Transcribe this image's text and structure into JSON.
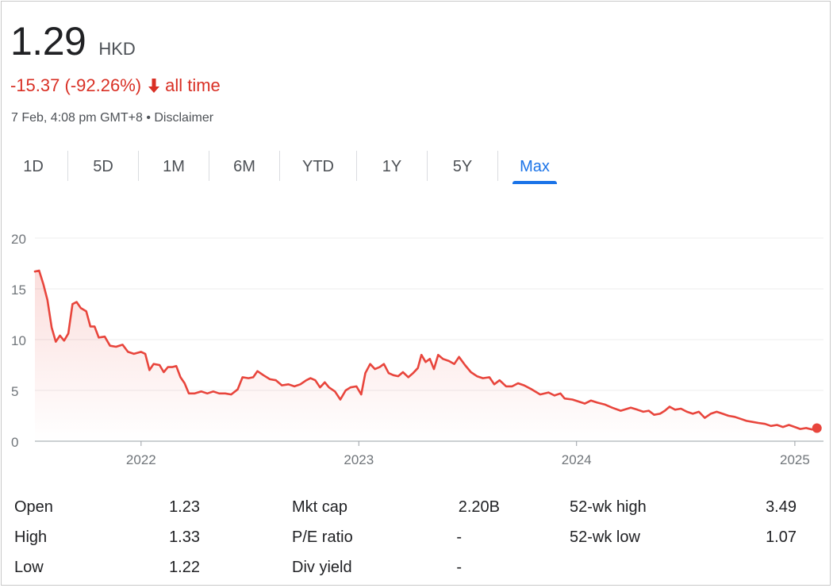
{
  "header": {
    "price": "1.29",
    "currency": "HKD",
    "change": "-15.37 (-92.26%)",
    "period": "all time",
    "timestamp": "7 Feb, 4:08 pm GMT+8",
    "separator": "•",
    "disclaimer": "Disclaimer"
  },
  "colors": {
    "accent": "#1a73e8",
    "negative": "#d93025",
    "line": "#e8453c"
  },
  "tabs": [
    {
      "label": "1D",
      "active": false
    },
    {
      "label": "5D",
      "active": false
    },
    {
      "label": "1M",
      "active": false
    },
    {
      "label": "6M",
      "active": false
    },
    {
      "label": "YTD",
      "active": false
    },
    {
      "label": "1Y",
      "active": false
    },
    {
      "label": "5Y",
      "active": false
    },
    {
      "label": "Max",
      "active": true
    }
  ],
  "chart_data": {
    "type": "area",
    "title": "",
    "xlabel": "",
    "ylabel": "",
    "ylim": [
      0,
      20
    ],
    "yticks": [
      0,
      5,
      10,
      15,
      20
    ],
    "xlim": [
      "2021-07-07",
      "2025-02-18"
    ],
    "xticks": [
      {
        "label": "2022",
        "date": "2022-01-01"
      },
      {
        "label": "2023",
        "date": "2023-01-01"
      },
      {
        "label": "2024",
        "date": "2024-01-01"
      },
      {
        "label": "2025",
        "date": "2025-01-01"
      }
    ],
    "grid": true,
    "series": [
      {
        "name": "",
        "points": [
          [
            "2021-07-07",
            16.7
          ],
          [
            "2021-07-14",
            16.8
          ],
          [
            "2021-07-21",
            15.5
          ],
          [
            "2021-07-28",
            13.9
          ],
          [
            "2021-08-04",
            11.2
          ],
          [
            "2021-08-11",
            9.8
          ],
          [
            "2021-08-18",
            10.4
          ],
          [
            "2021-08-25",
            9.9
          ],
          [
            "2021-09-01",
            10.6
          ],
          [
            "2021-09-08",
            13.5
          ],
          [
            "2021-09-15",
            13.7
          ],
          [
            "2021-09-22",
            13.1
          ],
          [
            "2021-10-01",
            12.8
          ],
          [
            "2021-10-08",
            11.3
          ],
          [
            "2021-10-15",
            11.3
          ],
          [
            "2021-10-22",
            10.2
          ],
          [
            "2021-11-01",
            10.3
          ],
          [
            "2021-11-10",
            9.4
          ],
          [
            "2021-11-20",
            9.3
          ],
          [
            "2021-12-01",
            9.5
          ],
          [
            "2021-12-10",
            8.8
          ],
          [
            "2021-12-20",
            8.6
          ],
          [
            "2022-01-01",
            8.8
          ],
          [
            "2022-01-08",
            8.6
          ],
          [
            "2022-01-15",
            7.0
          ],
          [
            "2022-01-22",
            7.6
          ],
          [
            "2022-02-01",
            7.5
          ],
          [
            "2022-02-08",
            6.8
          ],
          [
            "2022-02-15",
            7.3
          ],
          [
            "2022-02-22",
            7.3
          ],
          [
            "2022-03-01",
            7.4
          ],
          [
            "2022-03-08",
            6.3
          ],
          [
            "2022-03-15",
            5.7
          ],
          [
            "2022-03-22",
            4.7
          ],
          [
            "2022-04-01",
            4.7
          ],
          [
            "2022-04-12",
            4.9
          ],
          [
            "2022-04-22",
            4.7
          ],
          [
            "2022-05-02",
            4.9
          ],
          [
            "2022-05-12",
            4.7
          ],
          [
            "2022-05-22",
            4.7
          ],
          [
            "2022-06-01",
            4.6
          ],
          [
            "2022-06-12",
            5.1
          ],
          [
            "2022-06-20",
            6.3
          ],
          [
            "2022-06-30",
            6.2
          ],
          [
            "2022-07-08",
            6.3
          ],
          [
            "2022-07-15",
            6.9
          ],
          [
            "2022-07-25",
            6.5
          ],
          [
            "2022-08-05",
            6.1
          ],
          [
            "2022-08-15",
            6.0
          ],
          [
            "2022-08-25",
            5.5
          ],
          [
            "2022-09-05",
            5.6
          ],
          [
            "2022-09-15",
            5.4
          ],
          [
            "2022-09-25",
            5.6
          ],
          [
            "2022-10-05",
            6.0
          ],
          [
            "2022-10-12",
            6.2
          ],
          [
            "2022-10-20",
            6.0
          ],
          [
            "2022-10-28",
            5.3
          ],
          [
            "2022-11-05",
            5.8
          ],
          [
            "2022-11-12",
            5.3
          ],
          [
            "2022-11-22",
            4.9
          ],
          [
            "2022-12-01",
            4.1
          ],
          [
            "2022-12-10",
            5.0
          ],
          [
            "2022-12-18",
            5.3
          ],
          [
            "2022-12-28",
            5.4
          ],
          [
            "2023-01-05",
            4.6
          ],
          [
            "2023-01-12",
            6.7
          ],
          [
            "2023-01-20",
            7.6
          ],
          [
            "2023-01-28",
            7.1
          ],
          [
            "2023-02-05",
            7.3
          ],
          [
            "2023-02-12",
            7.6
          ],
          [
            "2023-02-20",
            6.7
          ],
          [
            "2023-02-28",
            6.5
          ],
          [
            "2023-03-08",
            6.4
          ],
          [
            "2023-03-16",
            6.8
          ],
          [
            "2023-03-25",
            6.3
          ],
          [
            "2023-04-02",
            6.7
          ],
          [
            "2023-04-10",
            7.2
          ],
          [
            "2023-04-16",
            8.5
          ],
          [
            "2023-04-23",
            7.8
          ],
          [
            "2023-04-30",
            8.1
          ],
          [
            "2023-05-07",
            7.1
          ],
          [
            "2023-05-14",
            8.5
          ],
          [
            "2023-05-22",
            8.1
          ],
          [
            "2023-06-01",
            7.9
          ],
          [
            "2023-06-10",
            7.6
          ],
          [
            "2023-06-18",
            8.3
          ],
          [
            "2023-06-28",
            7.5
          ],
          [
            "2023-07-08",
            6.8
          ],
          [
            "2023-07-18",
            6.4
          ],
          [
            "2023-07-28",
            6.2
          ],
          [
            "2023-08-08",
            6.3
          ],
          [
            "2023-08-16",
            5.6
          ],
          [
            "2023-08-25",
            6.0
          ],
          [
            "2023-09-05",
            5.4
          ],
          [
            "2023-09-15",
            5.4
          ],
          [
            "2023-09-25",
            5.7
          ],
          [
            "2023-10-05",
            5.5
          ],
          [
            "2023-10-18",
            5.1
          ],
          [
            "2023-11-01",
            4.6
          ],
          [
            "2023-11-15",
            4.8
          ],
          [
            "2023-11-25",
            4.5
          ],
          [
            "2023-12-05",
            4.7
          ],
          [
            "2023-12-12",
            4.2
          ],
          [
            "2023-12-25",
            4.1
          ],
          [
            "2024-01-05",
            3.9
          ],
          [
            "2024-01-15",
            3.7
          ],
          [
            "2024-01-25",
            4.0
          ],
          [
            "2024-02-05",
            3.8
          ],
          [
            "2024-02-18",
            3.6
          ],
          [
            "2024-03-01",
            3.3
          ],
          [
            "2024-03-15",
            3.0
          ],
          [
            "2024-04-01",
            3.3
          ],
          [
            "2024-04-12",
            3.1
          ],
          [
            "2024-04-22",
            2.9
          ],
          [
            "2024-05-01",
            3.0
          ],
          [
            "2024-05-10",
            2.6
          ],
          [
            "2024-05-20",
            2.7
          ],
          [
            "2024-05-28",
            3.0
          ],
          [
            "2024-06-05",
            3.4
          ],
          [
            "2024-06-14",
            3.1
          ],
          [
            "2024-06-24",
            3.2
          ],
          [
            "2024-07-04",
            2.9
          ],
          [
            "2024-07-14",
            2.7
          ],
          [
            "2024-07-24",
            2.9
          ],
          [
            "2024-08-03",
            2.3
          ],
          [
            "2024-08-13",
            2.7
          ],
          [
            "2024-08-23",
            2.9
          ],
          [
            "2024-09-02",
            2.7
          ],
          [
            "2024-09-12",
            2.5
          ],
          [
            "2024-09-22",
            2.4
          ],
          [
            "2024-10-02",
            2.2
          ],
          [
            "2024-10-12",
            2.0
          ],
          [
            "2024-10-22",
            1.9
          ],
          [
            "2024-11-01",
            1.8
          ],
          [
            "2024-11-12",
            1.7
          ],
          [
            "2024-11-22",
            1.5
          ],
          [
            "2024-12-02",
            1.6
          ],
          [
            "2024-12-12",
            1.4
          ],
          [
            "2024-12-22",
            1.6
          ],
          [
            "2025-01-01",
            1.4
          ],
          [
            "2025-01-10",
            1.2
          ],
          [
            "2025-01-20",
            1.3
          ],
          [
            "2025-01-30",
            1.15
          ],
          [
            "2025-02-07",
            1.29
          ]
        ]
      }
    ]
  },
  "stats": [
    [
      {
        "label": "Open",
        "value": "1.23"
      },
      {
        "label": "High",
        "value": "1.33"
      },
      {
        "label": "Low",
        "value": "1.22"
      }
    ],
    [
      {
        "label": "Mkt cap",
        "value": "2.20B"
      },
      {
        "label": "P/E ratio",
        "value": "-"
      },
      {
        "label": "Div yield",
        "value": "-"
      }
    ],
    [
      {
        "label": "52-wk high",
        "value": "3.49"
      },
      {
        "label": "52-wk low",
        "value": "1.07"
      }
    ]
  ]
}
